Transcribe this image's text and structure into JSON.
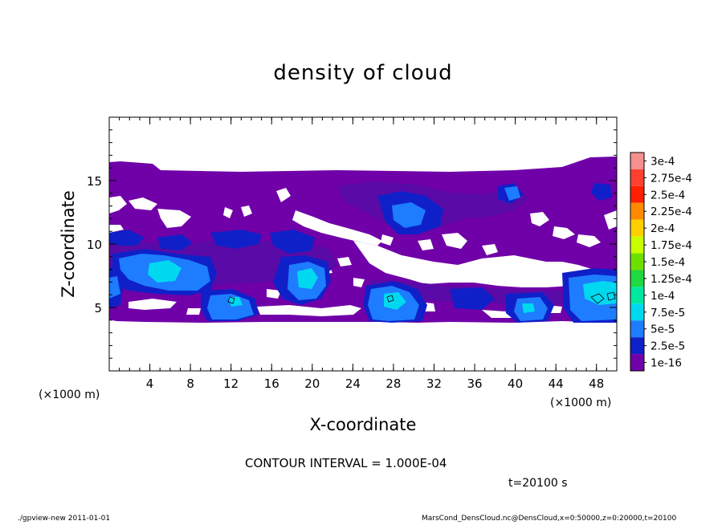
{
  "chart_data": {
    "type": "heatmap",
    "title": "density of cloud",
    "xlabel": "X-coordinate",
    "ylabel": "Z-coordinate",
    "x_unit": "(×1000 m)",
    "x_tick_labels": [
      "4",
      "8",
      "12",
      "16",
      "20",
      "24",
      "28",
      "32",
      "36",
      "40",
      "44",
      "48"
    ],
    "y_tick_labels": [
      "5",
      "10",
      "15"
    ],
    "xlim": [
      0,
      50
    ],
    "ylim": [
      0,
      20
    ],
    "colorbar": {
      "labels": [
        "3e-4",
        "2.75e-4",
        "2.5e-4",
        "2.25e-4",
        "2e-4",
        "1.75e-4",
        "1.5e-4",
        "1.25e-4",
        "1e-4",
        "7.5e-5",
        "5e-5",
        "2.5e-5",
        "1e-16"
      ],
      "colors": [
        "#f4908e",
        "#ff4030",
        "#ff2000",
        "#ff8a00",
        "#ffd000",
        "#c8ff00",
        "#6ee000",
        "#20d840",
        "#00e8a0",
        "#00d8f0",
        "#1e7cff",
        "#1020c8",
        "#7000a8"
      ]
    },
    "cloud_layer": {
      "main_deck_z_range": [
        4.2,
        16.2
      ],
      "dense_regions": [
        {
          "x": 5,
          "z": 8.2,
          "level": "5e-5"
        },
        {
          "x": 12,
          "z": 5.0,
          "level": "5e-5"
        },
        {
          "x": 19,
          "z": 7.0,
          "level": "5e-5"
        },
        {
          "x": 28,
          "z": 5.2,
          "level": "5e-5"
        },
        {
          "x": 40,
          "z": 5.0,
          "level": "5e-5"
        },
        {
          "x": 48,
          "z": 6.0,
          "level": "7.5e-5"
        }
      ]
    },
    "contour_interval": "CONTOUR INTERVAL = 1.000E-04",
    "time": "t=20100 s"
  },
  "footer": {
    "left": "./gpview-new   2011-01-01",
    "right": "MarsCond_DensCloud.nc@DensCloud,x=0:50000,z=0:20000,t=20100"
  }
}
